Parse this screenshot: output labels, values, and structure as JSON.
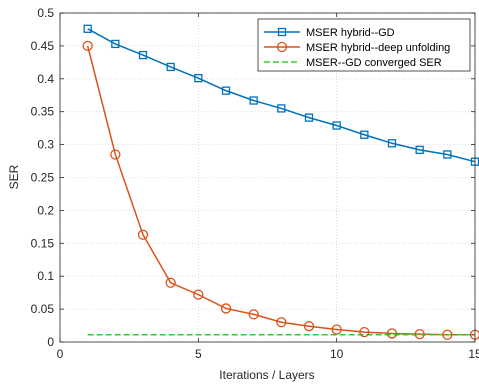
{
  "chart_data": {
    "type": "line",
    "xlabel": "Iterations / Layers",
    "ylabel": "SER",
    "xlim": [
      0,
      15
    ],
    "ylim": [
      0,
      0.5
    ],
    "xticks": [
      0,
      5,
      10,
      15
    ],
    "yticks": [
      0,
      0.05,
      0.1,
      0.15,
      0.2,
      0.25,
      0.3,
      0.35,
      0.4,
      0.45,
      0.5
    ],
    "xtick_labels": [
      "0",
      "5",
      "10",
      "15"
    ],
    "ytick_labels": [
      "0",
      "0.05",
      "0.1",
      "0.15",
      "0.2",
      "0.25",
      "0.3",
      "0.35",
      "0.4",
      "0.45",
      "0.5"
    ],
    "grid": true,
    "legend_position": "top-right",
    "series": [
      {
        "name": "MSER hybrid--GD",
        "color": "#0072BD",
        "marker": "square",
        "line_style": "solid",
        "x": [
          1,
          2,
          3,
          4,
          5,
          6,
          7,
          8,
          9,
          10,
          11,
          12,
          13,
          14,
          15
        ],
        "values": [
          0.476,
          0.453,
          0.436,
          0.418,
          0.401,
          0.382,
          0.367,
          0.355,
          0.341,
          0.329,
          0.315,
          0.302,
          0.292,
          0.285,
          0.274
        ]
      },
      {
        "name": "MSER hybrid--deep unfolding",
        "color": "#D95319",
        "marker": "circle",
        "line_style": "solid",
        "x": [
          1,
          2,
          3,
          4,
          5,
          6,
          7,
          8,
          9,
          10,
          11,
          12,
          13,
          14,
          15
        ],
        "values": [
          0.45,
          0.285,
          0.163,
          0.09,
          0.072,
          0.051,
          0.042,
          0.03,
          0.024,
          0.019,
          0.015,
          0.013,
          0.012,
          0.011,
          0.011
        ]
      },
      {
        "name": "MSER--GD converged SER",
        "color": "#32CD32",
        "marker": "none",
        "line_style": "dashed",
        "x": [
          1,
          15
        ],
        "values": [
          0.011,
          0.011
        ]
      }
    ]
  }
}
